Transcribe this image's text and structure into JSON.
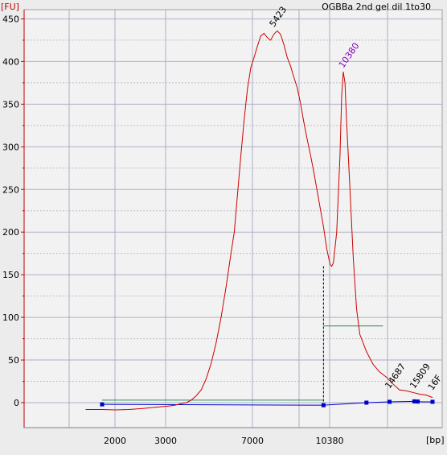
{
  "chart_data": {
    "type": "line",
    "title": "OGBBa 2nd gel dil 1to30",
    "ylabel": "[FU]",
    "xlabel": "[bp]",
    "ylim": [
      -20,
      460
    ],
    "yticks": [
      0,
      50,
      100,
      150,
      200,
      250,
      300,
      350,
      400,
      450
    ],
    "xticks": [
      "2000",
      "3000",
      "7000",
      "10380"
    ],
    "grid": true,
    "colors": {
      "trace": "#cc0000",
      "baseline": "#0000cc",
      "region": "#2e8b57",
      "axis": "#c00000",
      "grid": "#a8a8c4",
      "label": "#8000c0"
    },
    "trace": [
      [
        -0.05,
        -8
      ],
      [
        0.0,
        -8
      ],
      [
        0.04,
        -8.5
      ],
      [
        0.08,
        -8
      ],
      [
        0.12,
        -7
      ],
      [
        0.16,
        -5.5
      ],
      [
        0.2,
        -4
      ],
      [
        0.22,
        -3
      ],
      [
        0.24,
        -1
      ],
      [
        0.255,
        0
      ],
      [
        0.27,
        3
      ],
      [
        0.285,
        8
      ],
      [
        0.3,
        15
      ],
      [
        0.315,
        28
      ],
      [
        0.33,
        46
      ],
      [
        0.345,
        70
      ],
      [
        0.36,
        100
      ],
      [
        0.375,
        135
      ],
      [
        0.39,
        175
      ],
      [
        0.4,
        200
      ],
      [
        0.41,
        245
      ],
      [
        0.42,
        290
      ],
      [
        0.43,
        332
      ],
      [
        0.44,
        368
      ],
      [
        0.45,
        393
      ],
      [
        0.46,
        405
      ],
      [
        0.47,
        418
      ],
      [
        0.48,
        430
      ],
      [
        0.49,
        433
      ],
      [
        0.5,
        428
      ],
      [
        0.51,
        425
      ],
      [
        0.52,
        432
      ],
      [
        0.53,
        436
      ],
      [
        0.54,
        432
      ],
      [
        0.55,
        420
      ],
      [
        0.56,
        405
      ],
      [
        0.57,
        395
      ],
      [
        0.58,
        382
      ],
      [
        0.59,
        370
      ],
      [
        0.6,
        352
      ],
      [
        0.61,
        330
      ],
      [
        0.62,
        310
      ],
      [
        0.63,
        292
      ],
      [
        0.64,
        272
      ],
      [
        0.65,
        250
      ],
      [
        0.66,
        228
      ],
      [
        0.67,
        206
      ],
      [
        0.68,
        180
      ],
      [
        0.69,
        162
      ],
      [
        0.695,
        160
      ],
      [
        0.7,
        164
      ],
      [
        0.71,
        200
      ],
      [
        0.72,
        290
      ],
      [
        0.725,
        360
      ],
      [
        0.73,
        388
      ],
      [
        0.735,
        375
      ],
      [
        0.74,
        330
      ],
      [
        0.75,
        250
      ],
      [
        0.76,
        170
      ],
      [
        0.77,
        110
      ],
      [
        0.78,
        80
      ],
      [
        0.8,
        60
      ],
      [
        0.82,
        45
      ],
      [
        0.84,
        36
      ],
      [
        0.86,
        30
      ],
      [
        0.88,
        22
      ],
      [
        0.9,
        15
      ],
      [
        0.92,
        14
      ],
      [
        0.94,
        12
      ],
      [
        0.96,
        10
      ],
      [
        0.98,
        9
      ],
      [
        1.0,
        6
      ]
    ],
    "blue_baseline": [
      [
        0.0,
        -2
      ],
      [
        0.67,
        -3
      ],
      [
        0.8,
        0
      ],
      [
        0.87,
        1
      ],
      [
        0.945,
        1.5
      ],
      [
        0.97,
        1
      ],
      [
        1.0,
        1
      ]
    ],
    "blue_markers": [
      0.0,
      0.67,
      0.8,
      0.87,
      0.945,
      0.955,
      1.0
    ],
    "green_lines": [
      {
        "x0": 0.0,
        "x1": 0.67,
        "y": 3
      },
      {
        "x0": 0.67,
        "x1": 0.85,
        "y": 90
      }
    ],
    "valley_marker": {
      "x": 0.67,
      "y_top": 160,
      "y_bottom": -3
    },
    "peak_labels": [
      {
        "text": "5423",
        "x": 0.52,
        "y": 436,
        "style": "black"
      },
      {
        "text": "10380",
        "x": 0.73,
        "y": 388,
        "style": "purple"
      },
      {
        "text": "14687",
        "x": 0.87,
        "y": 12,
        "style": "black"
      },
      {
        "text": "15809",
        "x": 0.945,
        "y": 12,
        "style": "black"
      },
      {
        "text": "16F",
        "x": 1.0,
        "y": 10,
        "style": "black"
      }
    ]
  }
}
